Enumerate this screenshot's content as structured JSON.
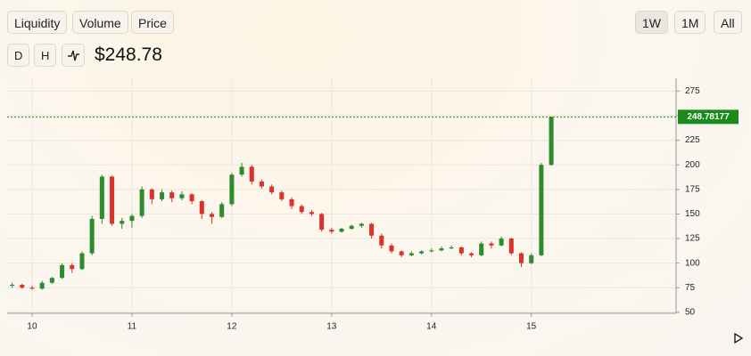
{
  "toolbar": {
    "left_buttons": [
      "Liquidity",
      "Volume",
      "Price"
    ],
    "right_buttons": [
      "1W",
      "1M",
      "All"
    ],
    "interval_buttons": [
      "D",
      "H"
    ],
    "price_display": "$248.78"
  },
  "chart_data": {
    "type": "candlestick",
    "x": [
      9.8,
      9.9,
      10.0,
      10.1,
      10.2,
      10.3,
      10.4,
      10.5,
      10.6,
      10.7,
      10.8,
      10.9,
      11.0,
      11.1,
      11.2,
      11.3,
      11.4,
      11.5,
      11.6,
      11.7,
      11.8,
      11.9,
      12.0,
      12.1,
      12.2,
      12.3,
      12.4,
      12.5,
      12.6,
      12.7,
      12.8,
      12.9,
      13.0,
      13.1,
      13.2,
      13.3,
      13.4,
      13.5,
      13.6,
      13.7,
      13.8,
      13.9,
      14.0,
      14.1,
      14.2,
      14.3,
      14.4,
      14.5,
      14.6,
      14.7,
      14.8,
      14.9,
      15.0,
      15.1,
      15.2
    ],
    "open": [
      77,
      78,
      75,
      74,
      80,
      85,
      98,
      94,
      110,
      145,
      188,
      140,
      143,
      148,
      175,
      165,
      172,
      166,
      170,
      163,
      150,
      147,
      160,
      190,
      198,
      183,
      178,
      172,
      165,
      158,
      152,
      150,
      134,
      132,
      135,
      138,
      140,
      128,
      118,
      112,
      108,
      110,
      112,
      113,
      115,
      116,
      110,
      108,
      120,
      118,
      125,
      110,
      100,
      108,
      200
    ],
    "high": [
      80,
      79,
      77,
      82,
      86,
      100,
      100,
      112,
      148,
      190,
      189,
      146,
      150,
      178,
      176,
      175,
      174,
      173,
      171,
      164,
      152,
      162,
      192,
      202,
      200,
      185,
      180,
      174,
      167,
      160,
      154,
      151,
      136,
      136,
      139,
      141,
      141,
      130,
      120,
      113,
      112,
      113,
      115,
      117,
      118,
      117,
      111,
      122,
      122,
      127,
      126,
      111,
      110,
      202,
      249
    ],
    "low": [
      75,
      74,
      73,
      73,
      79,
      84,
      90,
      93,
      108,
      140,
      138,
      135,
      136,
      146,
      160,
      163,
      162,
      164,
      160,
      145,
      140,
      146,
      158,
      188,
      180,
      176,
      170,
      163,
      155,
      150,
      148,
      132,
      130,
      131,
      134,
      136,
      125,
      115,
      110,
      106,
      107,
      109,
      111,
      112,
      114,
      108,
      106,
      107,
      115,
      117,
      108,
      96,
      99,
      107,
      199
    ],
    "close": [
      78,
      75,
      74,
      80,
      85,
      98,
      94,
      110,
      145,
      188,
      140,
      143,
      148,
      175,
      165,
      172,
      166,
      170,
      163,
      150,
      147,
      160,
      190,
      198,
      183,
      178,
      172,
      165,
      158,
      152,
      150,
      134,
      132,
      135,
      138,
      140,
      128,
      118,
      112,
      108,
      110,
      112,
      113,
      115,
      116,
      110,
      108,
      120,
      118,
      125,
      110,
      100,
      108,
      200,
      248.78
    ],
    "up_color": "#2e8b2e",
    "down_color": "#d9342b",
    "xlim": [
      9.75,
      16.45
    ],
    "xticks": [
      10,
      11,
      12,
      13,
      14,
      15
    ],
    "ylim": [
      49,
      288
    ],
    "yticks": [
      50,
      75,
      100,
      125,
      150,
      175,
      200,
      225,
      250,
      275
    ],
    "price_line": 248.78177,
    "price_line_color": "#1a8a1a",
    "grid": true
  }
}
